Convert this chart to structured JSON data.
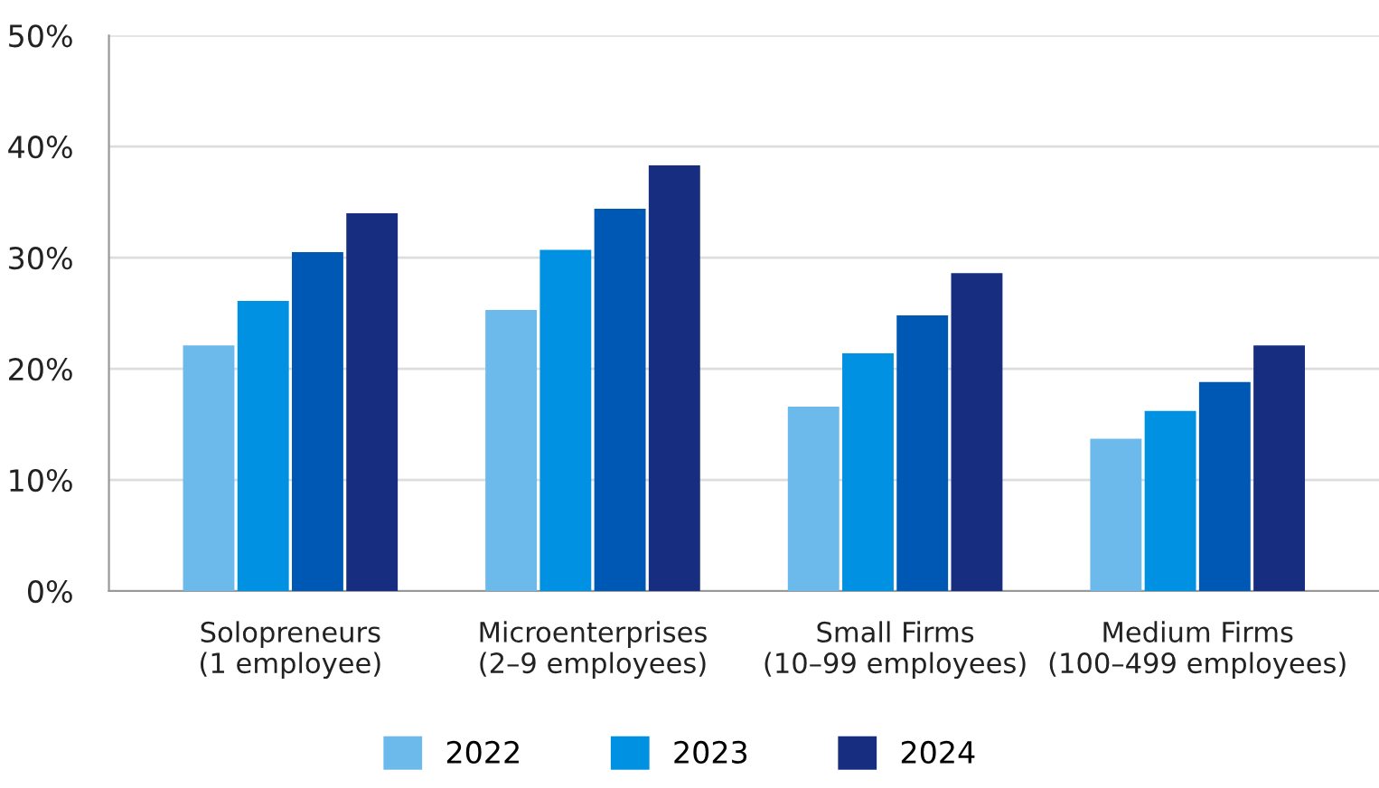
{
  "chart_data": {
    "type": "bar",
    "categories": [
      "Solopreneurs\n(1 employee)",
      "Microenterprises\n(2–9 employees)",
      "Small Firms\n(10–99 employees)",
      "Medium Firms\n(100–499 employees)"
    ],
    "series": [
      {
        "name": "2022",
        "color": "#6cb9ec",
        "values": [
          22.1,
          25.3,
          16.6,
          13.7
        ]
      },
      {
        "name": "2023",
        "color": "#0091e2",
        "values": [
          26.1,
          30.7,
          21.4,
          16.2
        ]
      },
      {
        "color": "#0058b5",
        "values": [
          30.5,
          34.4,
          24.8,
          18.8
        ]
      },
      {
        "name": "2024",
        "color": "#172e80",
        "values": [
          34.0,
          38.3,
          28.6,
          22.1
        ]
      }
    ],
    "ylim": [
      0,
      50
    ],
    "yticks": [
      {
        "value": 0,
        "label": "0%"
      },
      {
        "value": 10,
        "label": "10%"
      },
      {
        "value": 20,
        "label": "20%"
      },
      {
        "value": 30,
        "label": "30%"
      },
      {
        "value": 40,
        "label": "40%"
      },
      {
        "value": 50,
        "label": "50%"
      }
    ],
    "grid": "y",
    "legend": "bottom"
  }
}
